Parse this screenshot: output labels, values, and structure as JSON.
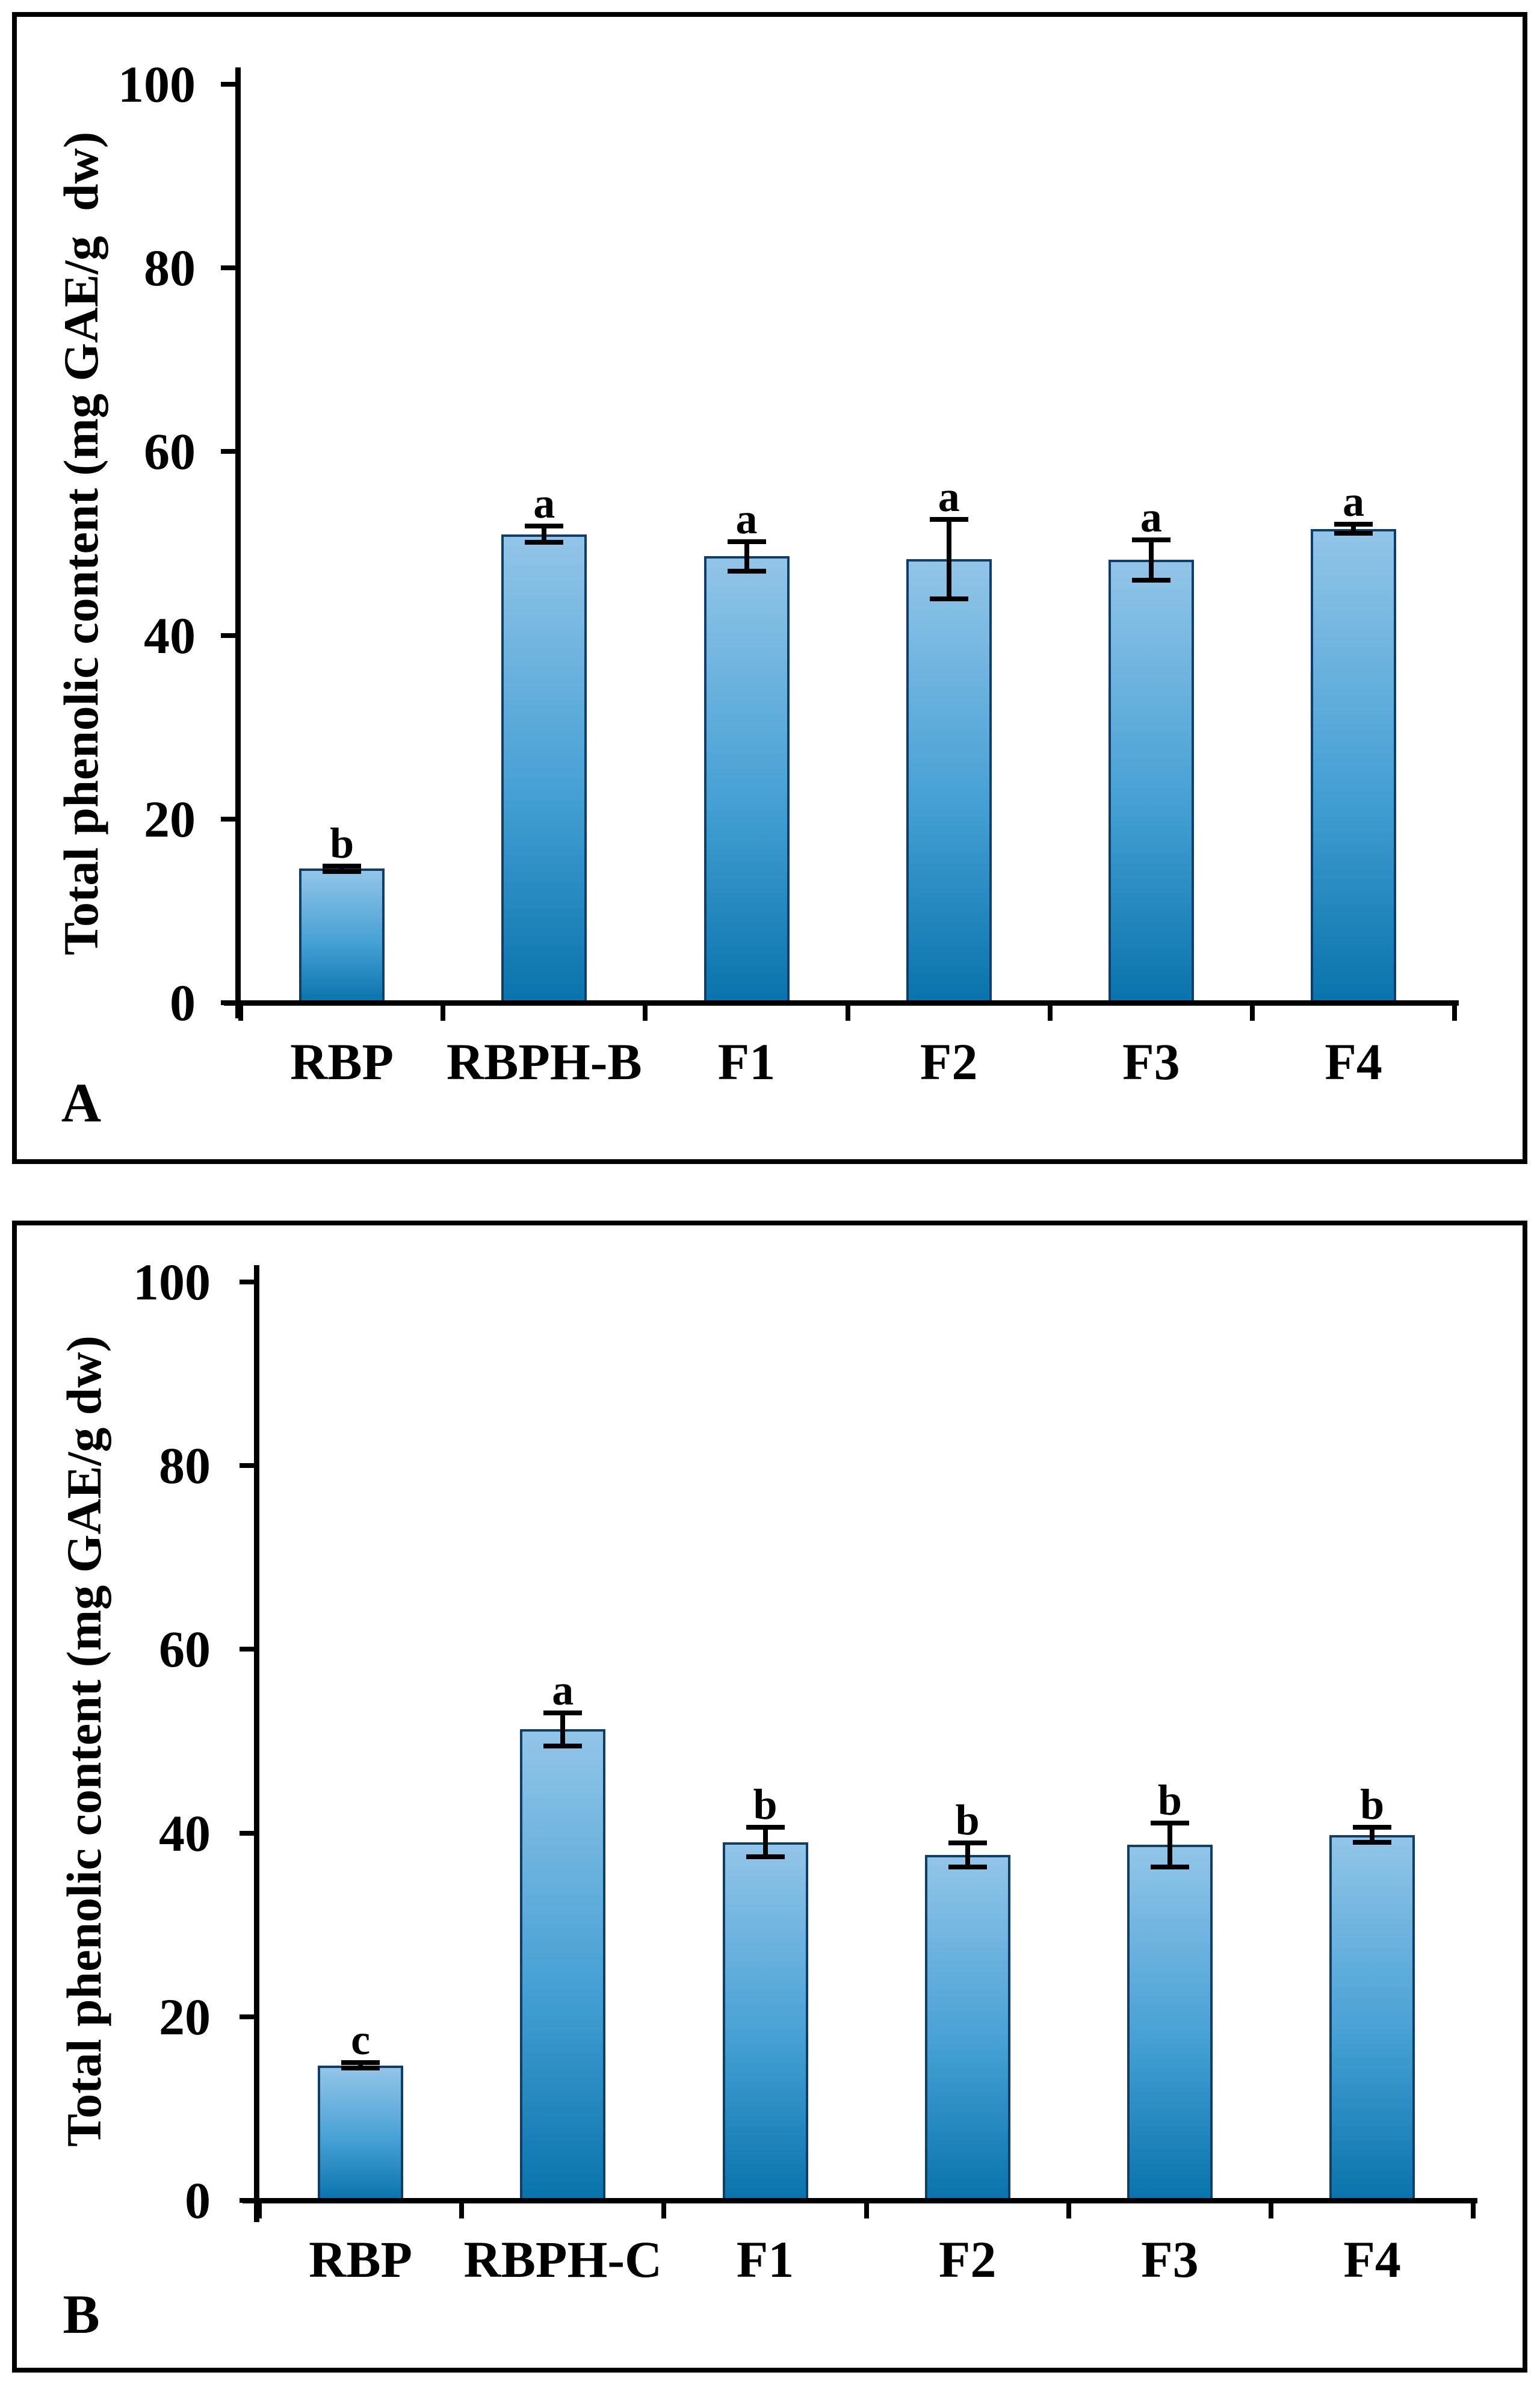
{
  "figure": {
    "background": "#ffffff"
  },
  "chart_data": [
    {
      "type": "bar",
      "panel_label": "A",
      "title": "",
      "xlabel": "",
      "ylabel": "Total phenolic content (mg GAE/g  dw)",
      "ylim": [
        0,
        100
      ],
      "yticks": [
        0,
        20,
        40,
        60,
        80,
        100
      ],
      "grid": false,
      "legend": false,
      "categories": [
        "RBP",
        "RBPH-B",
        "F1",
        "F2",
        "F3",
        "F4"
      ],
      "values": [
        14.6,
        51.0,
        48.6,
        48.3,
        48.2,
        51.6
      ],
      "errors": [
        0.3,
        0.9,
        1.6,
        4.3,
        2.2,
        0.5
      ],
      "sig_letters": [
        "b",
        "a",
        "a",
        "a",
        "a",
        "a"
      ]
    },
    {
      "type": "bar",
      "panel_label": "B",
      "title": "",
      "xlabel": "",
      "ylabel": "Total phenolic content (mg GAE/g dw)",
      "ylim": [
        0,
        100
      ],
      "yticks": [
        0,
        20,
        40,
        60,
        80,
        100
      ],
      "grid": false,
      "legend": false,
      "categories": [
        "RBP",
        "RBPH-C",
        "F1",
        "F2",
        "F3",
        "F4"
      ],
      "values": [
        14.7,
        51.3,
        39.0,
        37.6,
        38.7,
        39.8
      ],
      "errors": [
        0.3,
        1.8,
        1.6,
        1.3,
        2.4,
        0.8
      ],
      "sig_letters": [
        "c",
        "a",
        "b",
        "b",
        "b",
        "b"
      ]
    }
  ],
  "colors": {
    "bar_gradient_top": "#92c5e8",
    "bar_gradient_mid": "#45a0d4",
    "bar_gradient_bottom": "#0873ab",
    "bar_border": "#0e3f6b",
    "axis": "#000000",
    "text": "#000000",
    "panel_border": "#000000",
    "background": "#ffffff"
  }
}
